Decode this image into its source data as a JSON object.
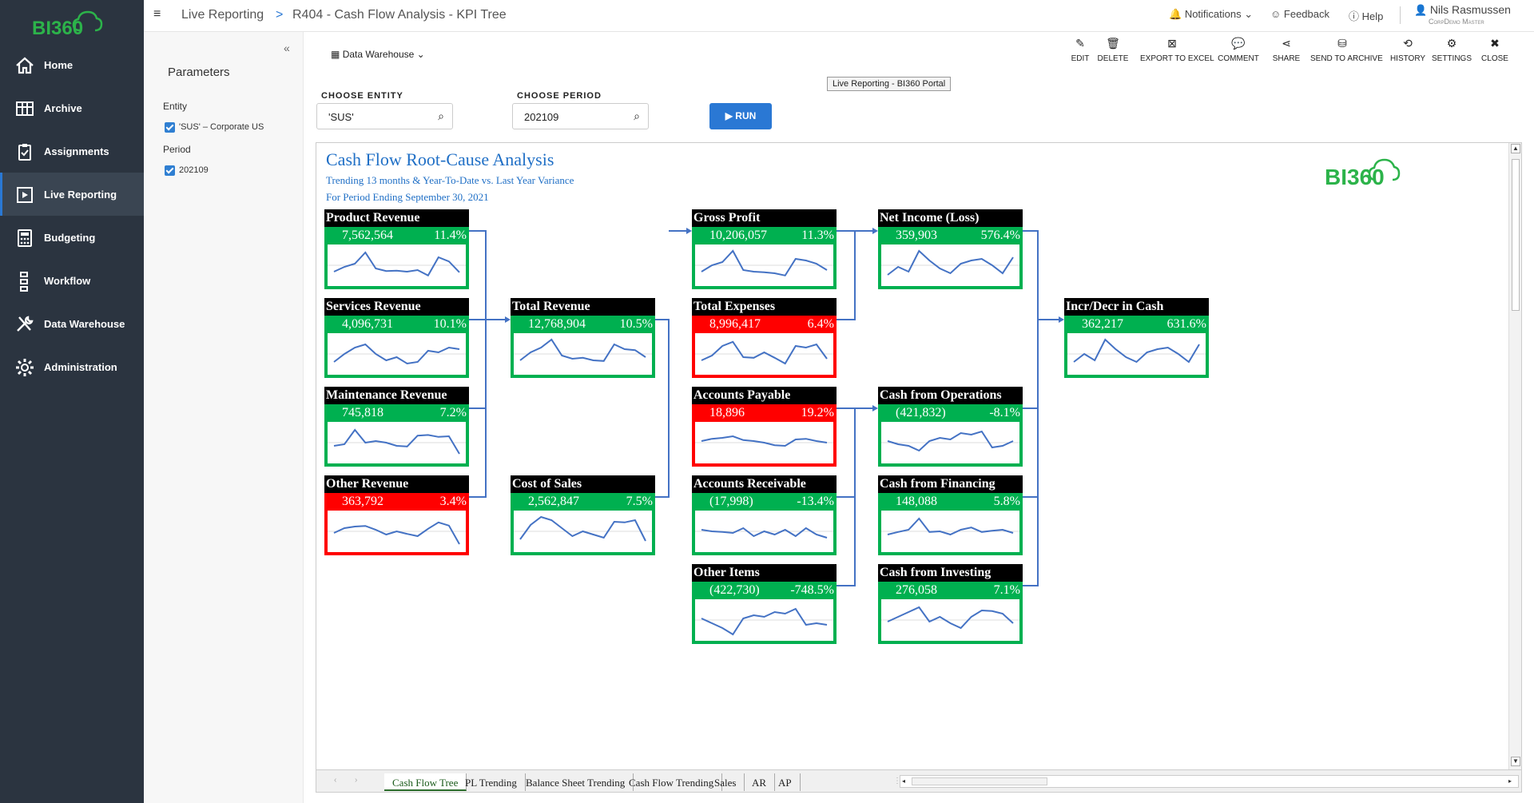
{
  "app": {
    "logo_text": "BI360",
    "brand_color": "#2cb34a"
  },
  "sidebar": {
    "items": [
      {
        "label": "Home",
        "icon": "home-icon"
      },
      {
        "label": "Archive",
        "icon": "archive-icon"
      },
      {
        "label": "Assignments",
        "icon": "clipboard-icon"
      },
      {
        "label": "Live Reporting",
        "icon": "live-reporting-icon",
        "active": true
      },
      {
        "label": "Budgeting",
        "icon": "calculator-icon"
      },
      {
        "label": "Workflow",
        "icon": "workflow-icon"
      },
      {
        "label": "Data Warehouse",
        "icon": "tools-icon"
      },
      {
        "label": "Administration",
        "icon": "gear-icon"
      }
    ]
  },
  "header": {
    "menu_icon": "hamburger-icon",
    "breadcrumb_root": "Live Reporting",
    "breadcrumb_sep": ">",
    "breadcrumb_page": "R404 - Cash Flow Analysis - KPI Tree",
    "notifications": "Notifications",
    "feedback": "Feedback",
    "help": "Help",
    "user_name": "Nils Rasmussen",
    "user_sub": "CorpDemo Master"
  },
  "parameters": {
    "title": "Parameters",
    "collapse": "«",
    "entity_label": "Entity",
    "entity_value": "'SUS' – Corporate US",
    "period_label": "Period",
    "period_value": "202109"
  },
  "toolbar": {
    "source": "Data Warehouse",
    "actions": [
      {
        "label": "EDIT",
        "icon": "pencil-icon"
      },
      {
        "label": "DELETE",
        "icon": "trash-icon"
      },
      {
        "label": "EXPORT TO EXCEL",
        "icon": "excel-icon"
      },
      {
        "label": "COMMENT",
        "icon": "comment-icon"
      },
      {
        "label": "SHARE",
        "icon": "share-icon"
      },
      {
        "label": "SEND TO ARCHIVE",
        "icon": "archive-send-icon"
      },
      {
        "label": "HISTORY",
        "icon": "history-icon"
      },
      {
        "label": "SETTINGS",
        "icon": "gear-icon"
      },
      {
        "label": "CLOSE",
        "icon": "close-icon"
      }
    ],
    "tooltip": "Live Reporting - BI360 Portal"
  },
  "filters": {
    "entity_label": "CHOOSE ENTITY",
    "entity_value": "'SUS'",
    "period_label": "CHOOSE PERIOD",
    "period_value": "202109",
    "run_label": "RUN"
  },
  "report": {
    "title": "Cash Flow Root-Cause Analysis",
    "subtitle1": "Trending 13 months &  Year-To-Date vs. Last Year Variance",
    "subtitle2": "For Period Ending September 30, 2021",
    "logo": "BI360",
    "colors": {
      "good": "#00b050",
      "bad": "#ff0000",
      "header": "#000000",
      "line": "#4472c4"
    },
    "tabs": [
      "Cash Flow Tree",
      "PL Trending",
      "Balance Sheet Trending",
      "Cash Flow Trending",
      "Sales",
      "AR",
      "AP"
    ],
    "active_tab": "Cash Flow Tree"
  },
  "kpis": [
    {
      "id": "product-revenue",
      "title": "Product Revenue",
      "value": "7,562,564",
      "pct": "11.4%",
      "status": "good",
      "spark": [
        30,
        45,
        55,
        90,
        40,
        32,
        33,
        30,
        35,
        18,
        75,
        62,
        28
      ]
    },
    {
      "id": "services-revenue",
      "title": "Services Revenue",
      "value": "4,096,731",
      "pct": "10.1%",
      "status": "good",
      "spark": [
        25,
        50,
        70,
        80,
        50,
        30,
        40,
        20,
        25,
        60,
        55,
        70,
        65
      ]
    },
    {
      "id": "maintenance-revenue",
      "title": "Maintenance Revenue",
      "value": "745,818",
      "pct": "7.2%",
      "status": "good",
      "spark": [
        40,
        45,
        90,
        50,
        55,
        50,
        40,
        38,
        72,
        74,
        68,
        70,
        15
      ]
    },
    {
      "id": "other-revenue",
      "title": "Other Revenue",
      "value": "363,792",
      "pct": "3.4%",
      "status": "bad",
      "spark": [
        45,
        60,
        65,
        67,
        55,
        40,
        50,
        42,
        35,
        58,
        78,
        68,
        10
      ]
    },
    {
      "id": "total-revenue",
      "title": "Total Revenue",
      "value": "12,768,904",
      "pct": "10.5%",
      "status": "good",
      "spark": [
        30,
        55,
        70,
        95,
        45,
        35,
        38,
        30,
        28,
        80,
        65,
        62,
        40
      ]
    },
    {
      "id": "cost-of-sales",
      "title": "Cost of Sales",
      "value": "2,562,847",
      "pct": "7.5%",
      "status": "good",
      "spark": [
        25,
        70,
        95,
        85,
        60,
        35,
        50,
        40,
        30,
        80,
        78,
        85,
        20
      ]
    },
    {
      "id": "gross-profit",
      "title": "Gross Profit",
      "value": "10,206,057",
      "pct": "11.3%",
      "status": "good",
      "spark": [
        30,
        50,
        60,
        95,
        35,
        30,
        28,
        25,
        18,
        70,
        65,
        55,
        35
      ]
    },
    {
      "id": "total-expenses",
      "title": "Total Expenses",
      "value": "8,996,417",
      "pct": "6.4%",
      "status": "bad",
      "spark": [
        30,
        45,
        75,
        88,
        40,
        38,
        55,
        38,
        20,
        75,
        70,
        80,
        35
      ]
    },
    {
      "id": "accounts-payable",
      "title": "Accounts Payable",
      "value": "18,896",
      "pct": "19.2%",
      "status": "bad",
      "spark": [
        55,
        62,
        65,
        70,
        58,
        55,
        50,
        42,
        40,
        60,
        62,
        55,
        50
      ]
    },
    {
      "id": "accounts-receivable",
      "title": "Accounts Receivable",
      "value": "(17,998)",
      "pct": "-13.4%",
      "status": "good",
      "spark": [
        55,
        50,
        48,
        45,
        60,
        35,
        50,
        40,
        55,
        35,
        60,
        40,
        30
      ]
    },
    {
      "id": "other-items",
      "title": "Other Items",
      "value": "(422,730)",
      "pct": "-748.5%",
      "status": "good",
      "spark": [
        55,
        40,
        25,
        5,
        55,
        65,
        60,
        75,
        70,
        85,
        35,
        40,
        35
      ]
    },
    {
      "id": "net-income",
      "title": "Net Income (Loss)",
      "value": "359,903",
      "pct": "576.4%",
      "status": "good",
      "spark": [
        20,
        45,
        30,
        95,
        65,
        40,
        25,
        55,
        65,
        70,
        50,
        25,
        75
      ]
    },
    {
      "id": "cash-from-operations",
      "title": "Cash from Operations",
      "value": "(421,832)",
      "pct": "-8.1%",
      "status": "good",
      "spark": [
        55,
        45,
        40,
        25,
        55,
        65,
        60,
        80,
        75,
        85,
        35,
        40,
        55
      ]
    },
    {
      "id": "cash-from-financing",
      "title": "Cash from Financing",
      "value": "148,088",
      "pct": "5.8%",
      "status": "good",
      "spark": [
        40,
        48,
        55,
        90,
        48,
        50,
        40,
        55,
        62,
        48,
        52,
        55,
        45
      ]
    },
    {
      "id": "cash-from-investing",
      "title": "Cash from Investing",
      "value": "276,058",
      "pct": "7.1%",
      "status": "good",
      "spark": [
        45,
        60,
        75,
        90,
        45,
        60,
        40,
        25,
        60,
        80,
        78,
        70,
        40
      ]
    },
    {
      "id": "incr-decr-cash",
      "title": "Incr/Decr in Cash",
      "value": "362,217",
      "pct": "631.6%",
      "status": "good",
      "spark": [
        25,
        50,
        30,
        95,
        65,
        40,
        25,
        55,
        65,
        70,
        50,
        25,
        80
      ]
    }
  ]
}
